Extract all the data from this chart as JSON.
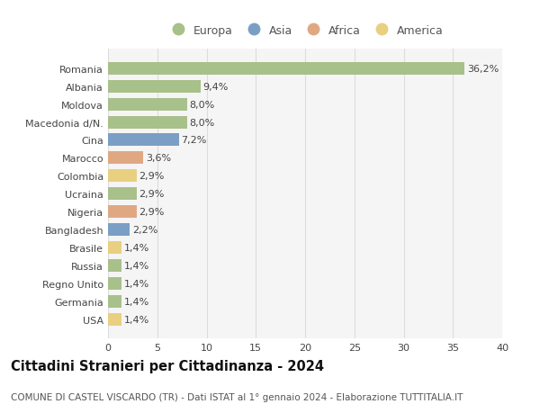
{
  "countries": [
    "Romania",
    "Albania",
    "Moldova",
    "Macedonia d/N.",
    "Cina",
    "Marocco",
    "Colombia",
    "Ucraina",
    "Nigeria",
    "Bangladesh",
    "Brasile",
    "Russia",
    "Regno Unito",
    "Germania",
    "USA"
  ],
  "values": [
    36.2,
    9.4,
    8.0,
    8.0,
    7.2,
    3.6,
    2.9,
    2.9,
    2.9,
    2.2,
    1.4,
    1.4,
    1.4,
    1.4,
    1.4
  ],
  "labels": [
    "36,2%",
    "9,4%",
    "8,0%",
    "8,0%",
    "7,2%",
    "3,6%",
    "2,9%",
    "2,9%",
    "2,9%",
    "2,2%",
    "1,4%",
    "1,4%",
    "1,4%",
    "1,4%",
    "1,4%"
  ],
  "continents": [
    "Europa",
    "Europa",
    "Europa",
    "Europa",
    "Asia",
    "Africa",
    "America",
    "Europa",
    "Africa",
    "Asia",
    "America",
    "Europa",
    "Europa",
    "Europa",
    "America"
  ],
  "colors": {
    "Europa": "#a8c08a",
    "Asia": "#7b9ec5",
    "Africa": "#e0a882",
    "America": "#e8d080"
  },
  "legend_entries": [
    "Europa",
    "Asia",
    "Africa",
    "America"
  ],
  "xlim": [
    0,
    40
  ],
  "xticks": [
    0,
    5,
    10,
    15,
    20,
    25,
    30,
    35,
    40
  ],
  "title": "Cittadini Stranieri per Cittadinanza - 2024",
  "subtitle": "COMUNE DI CASTEL VISCARDO (TR) - Dati ISTAT al 1° gennaio 2024 - Elaborazione TUTTITALIA.IT",
  "bg_color": "#ffffff",
  "plot_bg_color": "#f5f5f5",
  "grid_color": "#dddddd",
  "bar_height": 0.7,
  "label_fontsize": 8,
  "tick_fontsize": 8,
  "title_fontsize": 10.5,
  "subtitle_fontsize": 7.5
}
